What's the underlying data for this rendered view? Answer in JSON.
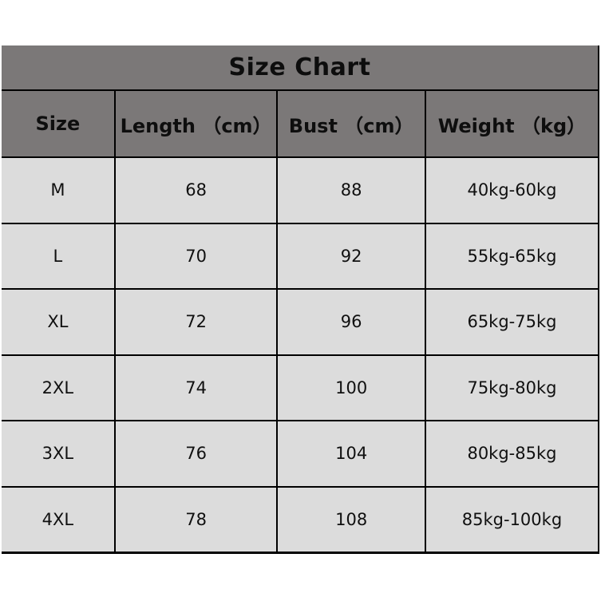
{
  "colors": {
    "page_background": "#ffffff",
    "title_header_background": "#7b7878",
    "data_cell_background": "#dcdcdc",
    "grid_border": "#000000",
    "text": "#0d0d0d"
  },
  "chart_data": {
    "type": "table",
    "title": "Size Chart",
    "columns": [
      "Size",
      "Length （cm）",
      "Bust （cm）",
      "Weight （kg）"
    ],
    "rows": [
      [
        "M",
        68,
        88,
        "40kg-60kg"
      ],
      [
        "L",
        70,
        92,
        "55kg-65kg"
      ],
      [
        "XL",
        72,
        96,
        "65kg-75kg"
      ],
      [
        "2XL",
        74,
        100,
        "75kg-80kg"
      ],
      [
        "3XL",
        76,
        104,
        "80kg-85kg"
      ],
      [
        "4XL",
        78,
        108,
        "85kg-100kg"
      ]
    ],
    "layout": {
      "title_position": "top-merged-cell",
      "grid": "on",
      "column_width_percent": [
        18.85,
        27.25,
        24.85,
        29.05
      ]
    }
  }
}
